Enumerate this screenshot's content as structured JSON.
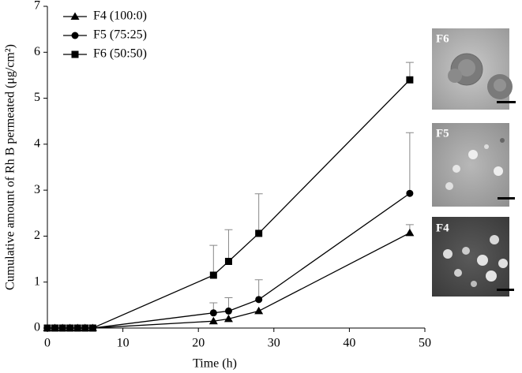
{
  "chart_data": {
    "type": "line",
    "x_label": "Time (h)",
    "y_label": "Cumulative amount of Rh B permeated (μg/cm²)",
    "x": [
      0,
      1,
      2,
      3,
      4,
      5,
      6,
      22,
      24,
      28,
      48
    ],
    "series": [
      {
        "name": "F4 (100:0)",
        "color": "#000000",
        "marker": "triangle",
        "values": [
          0,
          0,
          0,
          0,
          0,
          0,
          0,
          0.15,
          0.2,
          0.37,
          2.07
        ],
        "errors": [
          null,
          null,
          null,
          null,
          null,
          null,
          null,
          null,
          null,
          null,
          0.18
        ]
      },
      {
        "name": "F5 (75:25)",
        "color": "#000000",
        "marker": "circle",
        "values": [
          0,
          0,
          0,
          0,
          0,
          0,
          0,
          0.33,
          0.37,
          0.62,
          2.93
        ],
        "errors": [
          null,
          null,
          null,
          null,
          null,
          null,
          null,
          0.22,
          0.29,
          0.43,
          1.32
        ]
      },
      {
        "name": "F6 (50:50)",
        "color": "#000000",
        "marker": "square",
        "values": [
          0,
          0,
          0,
          0,
          0,
          0,
          0,
          1.15,
          1.45,
          2.06,
          5.4
        ],
        "errors": [
          null,
          null,
          null,
          null,
          null,
          null,
          null,
          0.65,
          0.69,
          0.86,
          0.38
        ]
      }
    ],
    "xlim": [
      0,
      50
    ],
    "xticks": [
      0,
      10,
      20,
      30,
      40,
      50
    ],
    "ylim": [
      0,
      7
    ],
    "yticks": [
      0,
      1,
      2,
      3,
      4,
      5,
      6,
      7
    ],
    "legend": "top-left",
    "annotations": [
      "F6",
      "F5",
      "F4"
    ]
  }
}
